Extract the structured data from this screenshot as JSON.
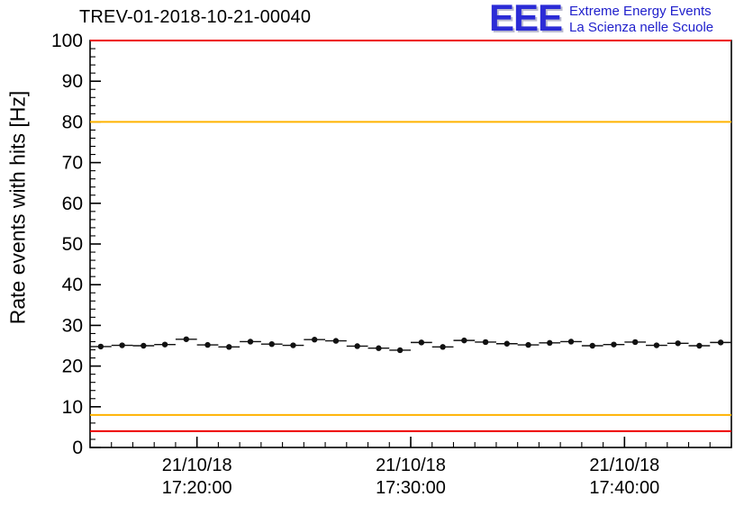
{
  "header": {
    "title": "TREV-01-2018-10-21-00040"
  },
  "logo": {
    "acronym": "EEE",
    "line1": "Extreme Energy Events",
    "line2": "La Scienza nelle Scuole",
    "color": "#2020cc"
  },
  "axes": {
    "y_label": "Rate events with hits [Hz]"
  },
  "chart_data": {
    "type": "scatter",
    "title": "TREV-01-2018-10-21-00040",
    "ylabel": "Rate events with hits [Hz]",
    "xlabel": "",
    "ylim": [
      0,
      100
    ],
    "y_major_tick_step": 10,
    "y_minor_tick_step": 2,
    "xlim_minutes": [
      0,
      30
    ],
    "x_minor_tick_step_minutes": 1,
    "x_ticks": [
      {
        "pos_min": 5,
        "date": "21/10/18",
        "time": "17:20:00"
      },
      {
        "pos_min": 15,
        "date": "21/10/18",
        "time": "17:30:00"
      },
      {
        "pos_min": 25,
        "date": "21/10/18",
        "time": "17:40:00"
      }
    ],
    "threshold_lines": [
      {
        "y": 100,
        "color": "#ee0000",
        "name": "upper-alarm"
      },
      {
        "y": 80,
        "color": "#ffb300",
        "name": "upper-warning"
      },
      {
        "y": 8,
        "color": "#ffb300",
        "name": "lower-warning"
      },
      {
        "y": 4,
        "color": "#ee0000",
        "name": "lower-alarm"
      }
    ],
    "points": {
      "t_min": [
        0.5,
        1.5,
        2.5,
        3.5,
        4.5,
        5.5,
        6.5,
        7.5,
        8.5,
        9.5,
        10.5,
        11.5,
        12.5,
        13.5,
        14.5,
        15.5,
        16.5,
        17.5,
        18.5,
        19.5,
        20.5,
        21.5,
        22.5,
        23.5,
        24.5,
        25.5,
        26.5,
        27.5,
        28.5,
        29.5
      ],
      "times": [
        "17:15:30",
        "17:16:30",
        "17:17:30",
        "17:18:30",
        "17:19:30",
        "17:20:30",
        "17:21:30",
        "17:22:30",
        "17:23:30",
        "17:24:30",
        "17:25:30",
        "17:26:30",
        "17:27:30",
        "17:28:30",
        "17:29:30",
        "17:30:30",
        "17:31:30",
        "17:32:30",
        "17:33:30",
        "17:34:30",
        "17:35:30",
        "17:36:30",
        "17:37:30",
        "17:38:30",
        "17:39:30",
        "17:40:30",
        "17:41:30",
        "17:42:30",
        "17:43:30",
        "17:44:30"
      ],
      "rate_hz": [
        24.8,
        25.1,
        25.0,
        25.3,
        26.6,
        25.2,
        24.7,
        26.0,
        25.4,
        25.1,
        26.5,
        26.2,
        24.9,
        24.4,
        23.9,
        25.8,
        24.7,
        26.3,
        25.9,
        25.5,
        25.2,
        25.7,
        26.0,
        25.0,
        25.3,
        25.9,
        25.1,
        25.6,
        25.0,
        25.8
      ],
      "xerr_min": 0.5,
      "yerr_hz": 0.5,
      "marker_color": "#111111"
    },
    "legend": null,
    "grid": false
  }
}
